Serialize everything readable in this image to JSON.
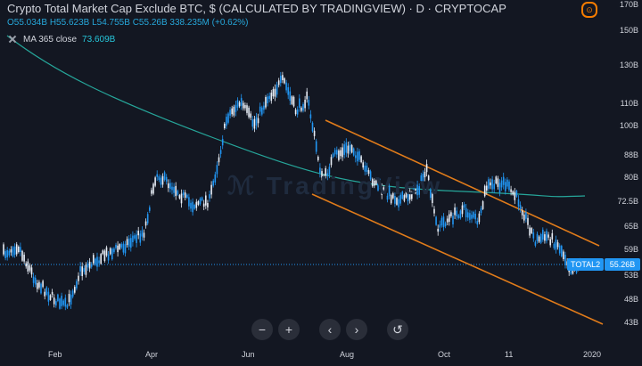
{
  "header": {
    "title": "Crypto Total Market Cap Exclude BTC, $ (CALCULATED BY TRADINGVIEW) · D · CRYPTOCAP",
    "open": "O55.034B",
    "high": "H55.623B",
    "low": "L54.755B",
    "close": "C55.26B",
    "change": "338.235M (+0.62%)"
  },
  "ma_legend": {
    "label": "MA 365 close",
    "value": "73.609B"
  },
  "price_scale": [
    "170B",
    "150B",
    "130B",
    "110B",
    "100B",
    "88B",
    "80B",
    "72.5B",
    "65B",
    "59B",
    "53B",
    "48B",
    "43B"
  ],
  "time_scale": [
    "Feb",
    "Apr",
    "Jun",
    "Aug",
    "Oct",
    "11",
    "2020"
  ],
  "last_price": {
    "symbol": "TOTAL2",
    "value": "55.26B"
  },
  "toolbar": {
    "zoom_out": "−",
    "zoom_in": "+",
    "scroll_left": "‹",
    "scroll_right": "›",
    "reset": "↺"
  },
  "watermark": "ℳ TradingView",
  "colors": {
    "background": "#131722",
    "candle": "#2196f3",
    "ma_line": "#26a69a",
    "channel": "#e07b1a",
    "text": "#d1d4dc",
    "label_bg": "#2196f3"
  },
  "icons": {
    "ma_visibility": "eye-icon",
    "chart_settings": "settings-icon"
  }
}
